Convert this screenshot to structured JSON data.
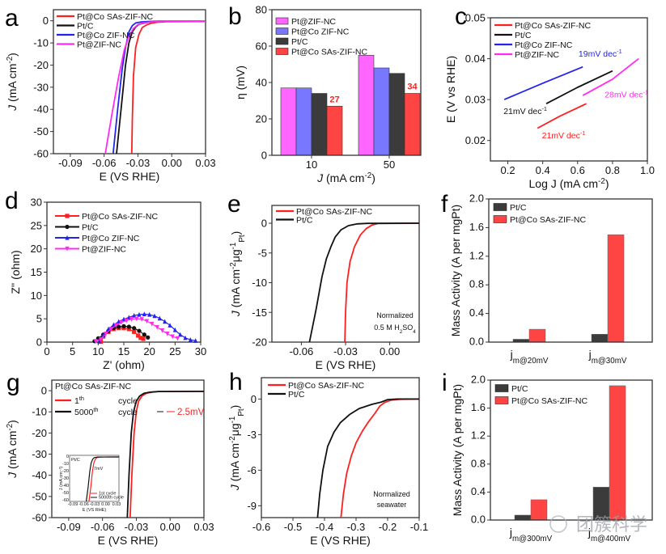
{
  "colors": {
    "red": "#ff1f1f",
    "black": "#111111",
    "blue": "#2323f0",
    "magenta": "#ff2cf0",
    "bar_magenta": "#ff66ff",
    "bar_blue": "#7777ff",
    "bar_black": "#3b3b3b",
    "bar_red": "#ff4444"
  },
  "watermark": "团簇科学",
  "chart_data": [
    {
      "id": "a",
      "panel_label": "a",
      "type": "line",
      "title": "",
      "xlabel": "E (VS RHE)",
      "ylabel": "J (mA cm⁻²)",
      "xlim": [
        -0.105,
        0.03
      ],
      "ylim": [
        -60,
        5
      ],
      "xticks": [
        -0.09,
        -0.06,
        -0.03,
        0.0,
        0.03
      ],
      "xtick_labels": [
        "-0.09",
        "-0.06",
        "-0.03",
        "0.00",
        "0.03"
      ],
      "yticks": [
        0,
        -10,
        -20,
        -30,
        -40,
        -50,
        -60
      ],
      "ytick_labels": [
        "0",
        "-10",
        "-20",
        "-30",
        "-40",
        "-50",
        "-60"
      ],
      "legend_position": "top-left",
      "series": [
        {
          "name": "Pt@Co SAs-ZIF-NC",
          "color": "#ff1f1f",
          "x": [
            -0.0355,
            -0.035,
            -0.034,
            -0.032,
            -0.029,
            -0.026,
            -0.022,
            -0.018,
            -0.012,
            -0.005,
            0.03
          ],
          "y": [
            -60,
            -45,
            -25,
            -12,
            -6,
            -3,
            -1.8,
            -1.1,
            -0.6,
            -0.4,
            -0.3
          ]
        },
        {
          "name": "Pt/C",
          "color": "#111111",
          "x": [
            -0.049,
            -0.045,
            -0.041,
            -0.038,
            -0.035,
            -0.032,
            -0.029,
            -0.024,
            -0.018,
            -0.01,
            0.03
          ],
          "y": [
            -60,
            -40,
            -20,
            -10,
            -5,
            -2.8,
            -1.6,
            -0.9,
            -0.5,
            -0.3,
            -0.3
          ]
        },
        {
          "name": "Pt@Co ZIF-NC",
          "color": "#2323f0",
          "x": [
            -0.052,
            -0.048,
            -0.044,
            -0.041,
            -0.038,
            -0.035,
            -0.032,
            -0.027,
            -0.02,
            -0.01,
            0.03
          ],
          "y": [
            -60,
            -40,
            -22,
            -12,
            -5,
            -2.2,
            -1.0,
            -0.5,
            -0.3,
            -0.2,
            -0.2
          ]
        },
        {
          "name": "Pt@ZIF-NC",
          "color": "#ff2cf0",
          "x": [
            -0.059,
            -0.053,
            -0.047,
            -0.042,
            -0.038,
            -0.034,
            -0.03,
            -0.025,
            -0.018,
            -0.008,
            0.03
          ],
          "y": [
            -60,
            -42,
            -25,
            -13,
            -7,
            -3.5,
            -1.8,
            -0.9,
            -0.5,
            -0.3,
            -0.3
          ]
        }
      ]
    },
    {
      "id": "b",
      "panel_label": "b",
      "type": "bar",
      "xlabel": "J (mA cm⁻²)",
      "ylabel": "η (mV)",
      "ylim": [
        0,
        80
      ],
      "yticks": [
        0,
        20,
        40,
        60,
        80
      ],
      "ytick_labels": [
        "0",
        "20",
        "40",
        "60",
        "80"
      ],
      "categories": [
        "10",
        "50"
      ],
      "legend_position": "top-left",
      "series": [
        {
          "name": "Pt@ZIF-NC",
          "color": "#ff66ff",
          "values": [
            37,
            55
          ]
        },
        {
          "name": "Pt@Co ZIF-NC",
          "color": "#7777ff",
          "values": [
            37,
            48
          ]
        },
        {
          "name": "Pt/C",
          "color": "#3b3b3b",
          "values": [
            34,
            45
          ]
        },
        {
          "name": "Pt@Co SAs-ZIF-NC",
          "color": "#ff4444",
          "values": [
            27,
            34
          ]
        }
      ],
      "annotations": [
        {
          "text": "27",
          "series": "Pt@Co SAs-ZIF-NC",
          "category": "10",
          "color": "#ff1f1f"
        },
        {
          "text": "34",
          "series": "Pt@Co SAs-ZIF-NC",
          "category": "50",
          "color": "#ff1f1f"
        }
      ]
    },
    {
      "id": "c",
      "panel_label": "c",
      "type": "line",
      "xlabel": "Log J (mA cm⁻²)",
      "ylabel": "E (V vs RHE)",
      "xlim": [
        0.1,
        1.0
      ],
      "ylim": [
        0.015,
        0.05
      ],
      "xticks": [
        0.2,
        0.4,
        0.6,
        0.8,
        1.0
      ],
      "xtick_labels": [
        "0.2",
        "0.4",
        "0.6",
        "0.8",
        "1.0"
      ],
      "yticks": [
        0.02,
        0.03,
        0.04,
        0.05
      ],
      "ytick_labels": [
        "0.02",
        "0.03",
        "0.04",
        "0.05"
      ],
      "legend_position": "top-left",
      "series": [
        {
          "name": "Pt@Co SAs-ZIF-NC",
          "color": "#ff1f1f",
          "x": [
            0.37,
            0.5,
            0.65
          ],
          "y": [
            0.023,
            0.026,
            0.029
          ]
        },
        {
          "name": "Pt/C",
          "color": "#111111",
          "x": [
            0.42,
            0.6,
            0.8
          ],
          "y": [
            0.029,
            0.033,
            0.037
          ]
        },
        {
          "name": "Pt@Co ZIF-NC",
          "color": "#2323f0",
          "x": [
            0.18,
            0.4,
            0.63
          ],
          "y": [
            0.03,
            0.034,
            0.038
          ]
        },
        {
          "name": "Pt@ZIF-NC",
          "color": "#ff2cf0",
          "x": [
            0.63,
            0.8,
            0.95
          ],
          "y": [
            0.031,
            0.035,
            0.04
          ]
        }
      ],
      "annotations": [
        {
          "text": "19mV dec⁻¹",
          "color": "#2323f0",
          "x": 0.73,
          "y": 0.0405
        },
        {
          "text": "21mV dec⁻¹",
          "color": "#111111",
          "x": 0.3,
          "y": 0.0265
        },
        {
          "text": "28mV dec⁻¹",
          "color": "#ff2cf0",
          "x": 0.88,
          "y": 0.0305
        },
        {
          "text": "21mV dec⁻¹",
          "color": "#ff1f1f",
          "x": 0.52,
          "y": 0.0205
        }
      ]
    },
    {
      "id": "d",
      "panel_label": "d",
      "type": "scatter",
      "xlabel": "Z' (ohm)",
      "ylabel": "Z'' (ohm)",
      "xlim": [
        0,
        30
      ],
      "ylim": [
        0,
        30
      ],
      "xticks": [
        0,
        5,
        10,
        15,
        20,
        25,
        30
      ],
      "xtick_labels": [
        "0",
        "5",
        "10",
        "15",
        "20",
        "25",
        "30"
      ],
      "yticks": [
        0,
        5,
        10,
        15,
        20,
        25,
        30
      ],
      "ytick_labels": [
        "0",
        "5",
        "10",
        "15",
        "20",
        "25",
        "30"
      ],
      "legend_position": "top-left",
      "series": [
        {
          "name": "Pt@Co SAs-ZIF-NC",
          "color": "#ff1f1f",
          "marker": "square",
          "x": [
            10.5,
            11,
            12,
            13,
            14,
            15,
            16,
            17,
            17.8,
            18.3,
            18.8
          ],
          "y": [
            0.1,
            1.2,
            2.2,
            2.8,
            3.0,
            3.0,
            2.8,
            2.2,
            1.4,
            0.9,
            0.7
          ]
        },
        {
          "name": "Pt/C",
          "color": "#111111",
          "marker": "circle",
          "x": [
            9.3,
            10,
            11,
            12,
            13,
            14,
            15,
            16,
            17,
            18,
            19,
            19.7
          ],
          "y": [
            0.2,
            0.8,
            1.6,
            2.4,
            3.0,
            3.3,
            3.4,
            3.3,
            3.0,
            2.4,
            1.6,
            1.0
          ]
        },
        {
          "name": "Pt@Co ZIF-NC",
          "color": "#2323f0",
          "marker": "triangle-up",
          "x": [
            10.2,
            11,
            12,
            13,
            14,
            15,
            16,
            17,
            18,
            19,
            20,
            21,
            22,
            23,
            24,
            25,
            26,
            27,
            28,
            29
          ],
          "y": [
            0.2,
            1.5,
            2.8,
            3.7,
            4.4,
            4.9,
            5.3,
            5.7,
            5.9,
            6.0,
            5.9,
            5.6,
            5.1,
            4.4,
            3.6,
            2.6,
            1.6,
            0.9,
            0.5,
            0.3
          ]
        },
        {
          "name": "Pt@ZIF-NC",
          "color": "#ff2cf0",
          "marker": "triangle-down",
          "x": [
            9.5,
            10.5,
            11.5,
            12.5,
            13.5,
            14.5,
            15.5,
            16.5,
            17.5,
            18.5,
            19.5,
            20.5,
            21.5,
            22.5,
            23.5,
            24.5,
            25.5
          ],
          "y": [
            0.2,
            0.6,
            1.8,
            2.8,
            3.6,
            4.2,
            4.6,
            4.9,
            5.0,
            4.9,
            4.5,
            3.9,
            3.2,
            2.5,
            1.8,
            1.2,
            0.8
          ]
        }
      ]
    },
    {
      "id": "e",
      "panel_label": "e",
      "type": "line",
      "xlabel": "E (VS RHE)",
      "ylabel": "J (mA cm⁻²μg⁻¹Pt)",
      "xlim": [
        -0.08,
        0.02
      ],
      "ylim": [
        -20,
        3
      ],
      "xticks": [
        -0.06,
        -0.03,
        0.0
      ],
      "xtick_labels": [
        "-0.06",
        "-0.03",
        "0.00"
      ],
      "yticks": [
        0,
        -5,
        -10,
        -15,
        -20
      ],
      "ytick_labels": [
        "0",
        "-5",
        "-10",
        "-15",
        "-20"
      ],
      "legend_position": "top-left",
      "annotation": [
        "Normalized",
        "0.5 M H₂SO₄"
      ],
      "series": [
        {
          "name": "Pt@Co SAs-ZIF-NC",
          "color": "#ff1f1f",
          "x": [
            -0.0305,
            -0.03,
            -0.029,
            -0.027,
            -0.024,
            -0.02,
            -0.016,
            -0.012,
            -0.008,
            0.02
          ],
          "y": [
            -20,
            -15,
            -10,
            -6.5,
            -4,
            -2,
            -0.9,
            -0.3,
            -0.05,
            0
          ]
        },
        {
          "name": "Pt/C",
          "color": "#111111",
          "x": [
            -0.0545,
            -0.05,
            -0.046,
            -0.043,
            -0.04,
            -0.037,
            -0.033,
            -0.028,
            -0.022,
            -0.015,
            0.02
          ],
          "y": [
            -20,
            -14.5,
            -9,
            -6,
            -4,
            -2.3,
            -1.1,
            -0.4,
            -0.1,
            -0.02,
            0
          ]
        }
      ]
    },
    {
      "id": "f",
      "panel_label": "f",
      "type": "bar",
      "xlabel": "",
      "ylabel": "Mass Activity (A per mgPt)",
      "ylim": [
        0,
        2.0
      ],
      "yticks": [
        0.0,
        0.4,
        0.8,
        1.2,
        1.6,
        2.0
      ],
      "ytick_labels": [
        "0.0",
        "0.4",
        "0.8",
        "1.2",
        "1.6",
        "2.0"
      ],
      "categories": [
        "j m@20mV",
        "j m@30mV"
      ],
      "category_main": [
        "j",
        "j"
      ],
      "category_sub": [
        "m@20mV",
        "m@30mV"
      ],
      "legend_position": "top-left",
      "series": [
        {
          "name": "Pt/C",
          "color": "#3b3b3b",
          "values": [
            0.04,
            0.11
          ]
        },
        {
          "name": "Pt@Co SAs-ZIF-NC",
          "color": "#ff4444",
          "values": [
            0.18,
            1.5
          ]
        }
      ]
    },
    {
      "id": "g",
      "panel_label": "g",
      "type": "line",
      "xlabel": "E (VS RHE)",
      "ylabel": "J (mA cm⁻²)",
      "xlim": [
        -0.105,
        0.03
      ],
      "ylim": [
        -60,
        5
      ],
      "xticks": [
        -0.09,
        -0.06,
        -0.03,
        0.0,
        0.03
      ],
      "xtick_labels": [
        "-0.09",
        "-0.06",
        "-0.03",
        "0.00",
        "0.03"
      ],
      "yticks": [
        0,
        -10,
        -20,
        -30,
        -40,
        -50,
        -60
      ],
      "ytick_labels": [
        "0",
        "-10",
        "-20",
        "-30",
        "-40",
        "-50",
        "-60"
      ],
      "legend_title": "Pt@Co SAs-ZIF-NC",
      "legend_position": "top-left",
      "annotation": "2.5mV",
      "series": [
        {
          "name": "1th cycle",
          "sup": "th",
          "base": "1",
          "suffix": "cycle",
          "color": "#ff1f1f",
          "x": [
            -0.0355,
            -0.034,
            -0.032,
            -0.03,
            -0.028,
            -0.025,
            -0.021,
            -0.016,
            -0.01,
            0.03
          ],
          "y": [
            -60,
            -40,
            -20,
            -10,
            -5,
            -2.5,
            -1.2,
            -0.7,
            -0.4,
            -0.3
          ]
        },
        {
          "name": "5000th cycle",
          "sup": "th",
          "base": "5000",
          "suffix": "cycle",
          "color": "#111111",
          "x": [
            -0.038,
            -0.0365,
            -0.0345,
            -0.0325,
            -0.03,
            -0.027,
            -0.023,
            -0.018,
            -0.011,
            0.03
          ],
          "y": [
            -60,
            -40,
            -20,
            -10,
            -5,
            -2.5,
            -1.2,
            -0.7,
            -0.4,
            -0.3
          ]
        }
      ],
      "inset": {
        "title": "Pt/C",
        "annotation": "7mV",
        "xlabel": "E (VS RHE)",
        "ylabel": "J (mA cm⁻²)",
        "xlim": [
          -0.1,
          0.03
        ],
        "ylim": [
          -60,
          2
        ],
        "xtick_labels": [
          "-0.09",
          "-0.06",
          "-0.03",
          "0.00",
          "0.03"
        ],
        "ytick_labels": [
          "0",
          "-10",
          "-20",
          "-30",
          "-40",
          "-50",
          "-60"
        ],
        "legend": [
          "1st cycle",
          "5000th cycle"
        ],
        "series": [
          {
            "name": "1st cycle",
            "color": "#ff1f1f",
            "x": [
              -0.049,
              -0.044,
              -0.04,
              -0.036,
              -0.032,
              -0.028,
              -0.02,
              0.03
            ],
            "y": [
              -60,
              -40,
              -20,
              -8,
              -3,
              -1,
              -0.3,
              -0.2
            ]
          },
          {
            "name": "5000th cycle",
            "color": "#111111",
            "x": [
              -0.056,
              -0.051,
              -0.047,
              -0.043,
              -0.039,
              -0.035,
              -0.026,
              0.03
            ],
            "y": [
              -60,
              -40,
              -20,
              -8,
              -3,
              -1,
              -0.3,
              -0.2
            ]
          }
        ]
      }
    },
    {
      "id": "h",
      "panel_label": "h",
      "type": "line",
      "xlabel": "E (VS RHE)",
      "ylabel": "J (mA cm⁻²μg⁻¹Pt)",
      "xlim": [
        -0.6,
        -0.1
      ],
      "ylim": [
        -10,
        1.8
      ],
      "xticks": [
        -0.6,
        -0.5,
        -0.4,
        -0.3,
        -0.2,
        -0.1
      ],
      "xtick_labels": [
        "-0.6",
        "-0.5",
        "-0.4",
        "-0.3",
        "-0.2",
        "-0.1"
      ],
      "yticks": [
        0,
        -3,
        -6,
        -9
      ],
      "ytick_labels": [
        "0",
        "-3",
        "-6",
        "-9"
      ],
      "legend_position": "top-left",
      "annotation": [
        "Normalized",
        "seawater"
      ],
      "series": [
        {
          "name": "Pt@Co SAs-ZIF-NC",
          "color": "#ff1f1f",
          "x": [
            -0.348,
            -0.34,
            -0.33,
            -0.315,
            -0.3,
            -0.28,
            -0.26,
            -0.24,
            -0.225,
            -0.21,
            -0.19,
            -0.16,
            -0.1
          ],
          "y": [
            -10,
            -8,
            -6.3,
            -4.8,
            -3.7,
            -2.7,
            -1.9,
            -1.2,
            -0.6,
            -0.3,
            -0.1,
            -0.02,
            0
          ]
        },
        {
          "name": "Pt/C",
          "color": "#111111",
          "x": [
            -0.422,
            -0.415,
            -0.405,
            -0.39,
            -0.37,
            -0.35,
            -0.32,
            -0.29,
            -0.25,
            -0.22,
            -0.2,
            -0.17,
            -0.1
          ],
          "y": [
            -10,
            -8,
            -6,
            -4,
            -2.8,
            -2.0,
            -1.3,
            -0.8,
            -0.45,
            -0.25,
            -0.05,
            0,
            0
          ]
        }
      ]
    },
    {
      "id": "i",
      "panel_label": "i",
      "type": "bar",
      "xlabel": "",
      "ylabel": "Mass Activity (A per mgPt)",
      "ylim": [
        0,
        2.0
      ],
      "yticks": [
        0.0,
        0.4,
        0.8,
        1.2,
        1.6,
        2.0
      ],
      "ytick_labels": [
        "0.0",
        "0.4",
        "0.8",
        "1.2",
        "1.6",
        "2.0"
      ],
      "categories": [
        "j m@300mV",
        "j m@400mV"
      ],
      "category_main": [
        "j",
        "j"
      ],
      "category_sub": [
        "m@300mV",
        "m@400mV"
      ],
      "legend_position": "top-left",
      "series": [
        {
          "name": "Pt/C",
          "color": "#3b3b3b",
          "values": [
            0.07,
            0.47
          ]
        },
        {
          "name": "Pt@Co SAs-ZIF-NC",
          "color": "#ff4444",
          "values": [
            0.29,
            1.92
          ]
        }
      ]
    }
  ]
}
